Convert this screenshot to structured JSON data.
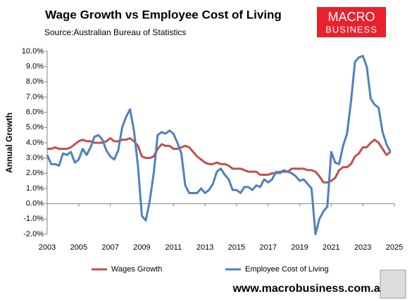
{
  "chart_data": {
    "type": "line",
    "title": "Wage Growth vs Employee Cost of Living",
    "subtitle": "Source:Australian Bureau of Statistics",
    "y_label": "Annual Growth",
    "logo": {
      "line1": "MACRO",
      "line2": "BUSINESS"
    },
    "website": "www.macrobusiness.com.au",
    "x": [
      2003,
      2003.25,
      2003.5,
      2003.75,
      2004,
      2004.25,
      2004.5,
      2004.75,
      2005,
      2005.25,
      2005.5,
      2005.75,
      2006,
      2006.25,
      2006.5,
      2006.75,
      2007,
      2007.25,
      2007.5,
      2007.75,
      2008,
      2008.25,
      2008.5,
      2008.75,
      2009,
      2009.25,
      2009.5,
      2009.75,
      2010,
      2010.25,
      2010.5,
      2010.75,
      2011,
      2011.25,
      2011.5,
      2011.75,
      2012,
      2012.25,
      2012.5,
      2012.75,
      2013,
      2013.25,
      2013.5,
      2013.75,
      2014,
      2014.25,
      2014.5,
      2014.75,
      2015,
      2015.25,
      2015.5,
      2015.75,
      2016,
      2016.25,
      2016.5,
      2016.75,
      2017,
      2017.25,
      2017.5,
      2017.75,
      2018,
      2018.25,
      2018.5,
      2018.75,
      2019,
      2019.25,
      2019.5,
      2019.75,
      2020,
      2020.25,
      2020.5,
      2020.75,
      2021,
      2021.25,
      2021.5,
      2021.75,
      2022,
      2022.25,
      2022.5,
      2022.75,
      2023,
      2023.25,
      2023.5,
      2023.75,
      2024,
      2024.25,
      2024.5,
      2024.75
    ],
    "series": [
      {
        "name": "Wages Growth",
        "color": "#c0504d",
        "values": [
          3.6,
          3.6,
          3.7,
          3.6,
          3.6,
          3.6,
          3.7,
          3.9,
          4.1,
          4.2,
          4.1,
          4.1,
          4.0,
          4.0,
          4.0,
          4.1,
          4.3,
          4.1,
          4.1,
          4.2,
          4.2,
          4.3,
          4.1,
          3.8,
          3.1,
          3.0,
          3.0,
          3.1,
          3.6,
          3.9,
          3.8,
          3.8,
          3.6,
          3.6,
          3.7,
          3.8,
          3.7,
          3.4,
          3.1,
          2.9,
          2.7,
          2.6,
          2.6,
          2.7,
          2.6,
          2.6,
          2.5,
          2.3,
          2.3,
          2.3,
          2.2,
          2.1,
          2.1,
          2.1,
          1.9,
          1.9,
          1.9,
          2.0,
          2.0,
          2.1,
          2.1,
          2.1,
          2.3,
          2.3,
          2.3,
          2.3,
          2.2,
          2.2,
          2.1,
          1.8,
          1.4,
          1.4,
          1.5,
          1.7,
          2.2,
          2.4,
          2.4,
          2.6,
          3.1,
          3.3,
          3.7,
          3.7,
          4.0,
          4.2,
          4.0,
          3.6,
          3.2,
          3.4
        ]
      },
      {
        "name": "Employee Cost of Living",
        "color": "#4f81bd",
        "values": [
          3.2,
          2.6,
          2.6,
          2.5,
          3.3,
          3.2,
          3.4,
          2.7,
          2.9,
          3.6,
          3.2,
          3.7,
          4.4,
          4.5,
          4.2,
          3.5,
          3.1,
          2.9,
          3.5,
          5.0,
          5.7,
          6.2,
          4.8,
          2.5,
          -0.8,
          -1.1,
          0.2,
          2.0,
          4.5,
          4.7,
          4.6,
          4.8,
          4.6,
          4.0,
          3.3,
          1.2,
          0.7,
          0.7,
          0.7,
          1.0,
          0.7,
          0.9,
          1.3,
          2.1,
          2.3,
          1.9,
          1.6,
          0.9,
          0.9,
          0.7,
          1.1,
          1.1,
          0.9,
          1.2,
          1.1,
          1.6,
          1.4,
          1.6,
          2.1,
          2.0,
          2.2,
          2.1,
          2.0,
          1.8,
          1.5,
          1.6,
          1.3,
          1.0,
          -2.0,
          -1.0,
          -0.5,
          -0.2,
          3.4,
          2.7,
          2.6,
          3.8,
          4.6,
          6.7,
          9.3,
          9.6,
          9.7,
          9.0,
          6.9,
          6.5,
          6.3,
          4.7,
          3.9,
          3.4
        ]
      }
    ],
    "xlim": [
      2003,
      2025
    ],
    "xticks": [
      2003,
      2005,
      2007,
      2009,
      2011,
      2013,
      2015,
      2017,
      2019,
      2021,
      2023,
      2025
    ],
    "ylim": [
      -2,
      10
    ],
    "yticks": [
      {
        "value": -2,
        "label": "-2.0%"
      },
      {
        "value": -1,
        "label": "-1.0%"
      },
      {
        "value": 0,
        "label": "0.0%"
      },
      {
        "value": 1,
        "label": "1.0%"
      },
      {
        "value": 2,
        "label": "2.0%"
      },
      {
        "value": 3,
        "label": "3.0%"
      },
      {
        "value": 4,
        "label": "4.0%"
      },
      {
        "value": 5,
        "label": "5.0%"
      },
      {
        "value": 6,
        "label": "6.0%"
      },
      {
        "value": 7,
        "label": "7.0%"
      },
      {
        "value": 8,
        "label": "8.0%"
      },
      {
        "value": 9,
        "label": "9.0%"
      },
      {
        "value": 10,
        "label": "10.0%"
      }
    ],
    "grid": false
  }
}
